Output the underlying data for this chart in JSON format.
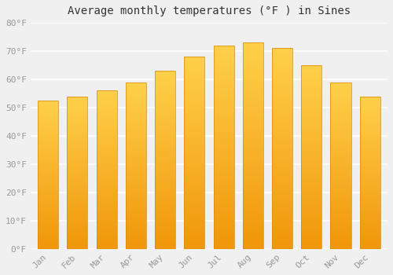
{
  "title": "Average monthly temperatures (°F ) in Sines",
  "months": [
    "Jan",
    "Feb",
    "Mar",
    "Apr",
    "May",
    "Jun",
    "Jul",
    "Aug",
    "Sep",
    "Oct",
    "Nov",
    "Dec"
  ],
  "values": [
    52.5,
    54.0,
    56.0,
    59.0,
    63.0,
    68.0,
    72.0,
    73.0,
    71.0,
    65.0,
    59.0,
    54.0
  ],
  "ylim": [
    0,
    80
  ],
  "yticks": [
    0,
    10,
    20,
    30,
    40,
    50,
    60,
    70,
    80
  ],
  "ytick_labels": [
    "0°F",
    "10°F",
    "20°F",
    "30°F",
    "40°F",
    "50°F",
    "60°F",
    "70°F",
    "80°F"
  ],
  "bar_color_top": "#FFD04A",
  "bar_color_bottom": "#F0960A",
  "bar_edge_color": "#D4890A",
  "background_color": "#f0f0f0",
  "plot_bg_color": "#f0f0f0",
  "grid_color": "#ffffff",
  "title_fontsize": 10,
  "tick_fontsize": 8,
  "tick_color": "#999999",
  "title_color": "#333333",
  "font_family": "monospace",
  "bar_width": 0.7,
  "figsize": [
    5.0,
    3.5
  ],
  "dpi": 100
}
